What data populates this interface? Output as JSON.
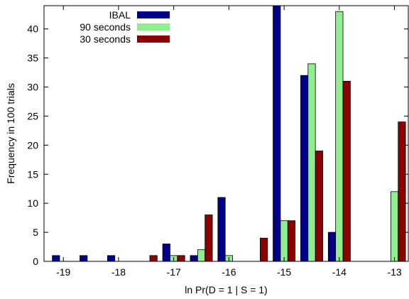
{
  "chart_data": {
    "type": "bar",
    "xlabel": "ln Pr(D = 1 | S = 1)",
    "ylabel": "Frequency in 100 trials",
    "x_ticks": [
      -19,
      -18,
      -17,
      -16,
      -15,
      -14,
      -13
    ],
    "xlim": [
      -19.35,
      -12.75
    ],
    "ylim": [
      0,
      44
    ],
    "y_ticks": [
      0,
      5,
      10,
      15,
      20,
      25,
      30,
      35,
      40
    ],
    "bin_centers": [
      -19,
      -18.5,
      -18,
      -17.5,
      -17,
      -16.5,
      -16,
      -15.5,
      -15,
      -14.5,
      -14,
      -13.5,
      -13
    ],
    "grid": false,
    "legend_position": "top-center",
    "series": [
      {
        "name": "IBAL",
        "color": "#00008b",
        "values": [
          1,
          1,
          1,
          0,
          3,
          1,
          11,
          0,
          44,
          32,
          5,
          0,
          0
        ]
      },
      {
        "name": "90 seconds",
        "color": "#90ee90",
        "values": [
          0,
          0,
          0,
          0,
          1,
          2,
          1,
          0,
          7,
          34,
          43,
          0,
          12
        ]
      },
      {
        "name": "30 seconds",
        "color": "#8b0000",
        "values": [
          0,
          0,
          0,
          1,
          1,
          8,
          0,
          4,
          7,
          19,
          31,
          0,
          24
        ]
      }
    ]
  }
}
